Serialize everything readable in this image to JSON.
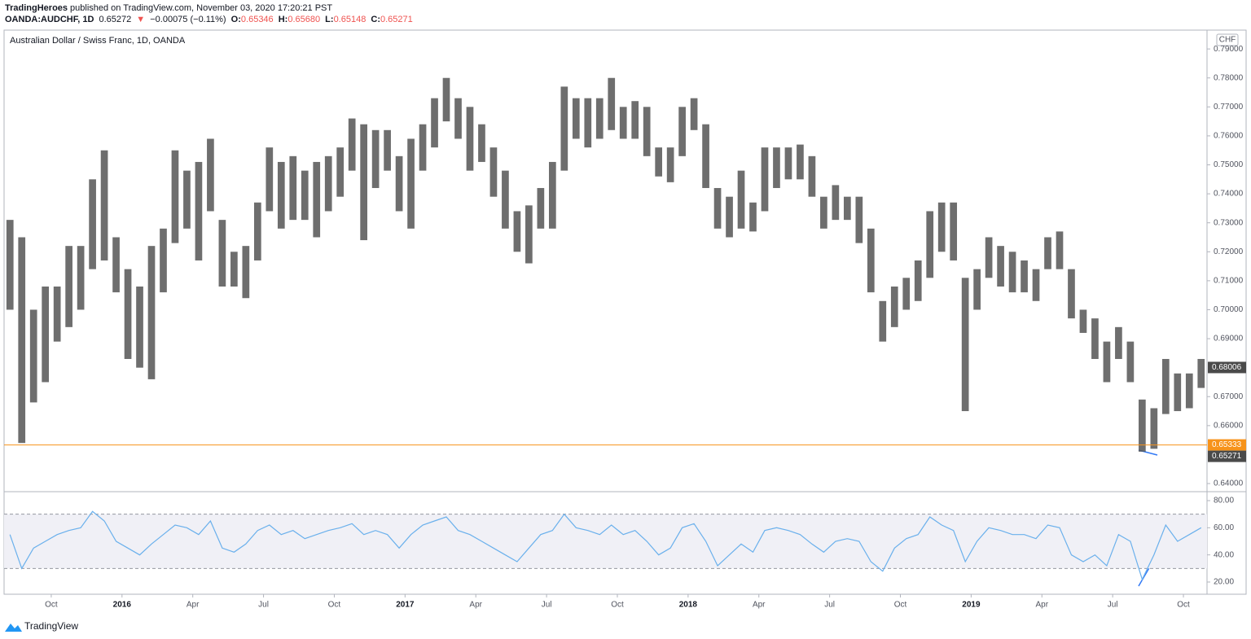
{
  "header": {
    "publisher": "TradingHeroes",
    "published_text": "published on TradingView.com, November 03, 2020 17:20:21 PST",
    "symbol": "OANDA:AUDCHF, 1D",
    "last": "0.65272",
    "change": "−0.00075 (−0.11%)",
    "o_label": "O:",
    "o": "0.65346",
    "h_label": "H:",
    "h": "0.65680",
    "l_label": "L:",
    "l": "0.65148",
    "c_label": "C:",
    "c": "0.65271"
  },
  "chart_data": [
    {
      "type": "range-bar",
      "title": "Australian Dollar / Swiss Franc, 1D, OANDA",
      "currency": "CHF",
      "color": "#555555",
      "categories": [
        null,
        null,
        null,
        null,
        "Oct",
        null,
        null,
        null,
        null,
        null,
        "2016",
        null,
        null,
        null,
        null,
        null,
        "Apr",
        null,
        null,
        null,
        null,
        null,
        "Jul",
        null,
        null,
        null,
        null,
        null,
        "Oct",
        null,
        null,
        null,
        null,
        null,
        "2017",
        null,
        null,
        null,
        null,
        null,
        "Apr",
        null,
        null,
        null,
        null,
        null,
        "Jul",
        null,
        null,
        null,
        null,
        null,
        "Oct",
        null,
        null,
        null,
        null,
        null,
        "2018",
        null,
        null,
        null,
        null,
        null,
        "Apr",
        null,
        null,
        null,
        null,
        null,
        "Jul",
        null,
        null,
        null,
        null,
        null,
        "Oct",
        null,
        null,
        null,
        null,
        null,
        "2019",
        null,
        null,
        null,
        null,
        null,
        "Apr",
        null,
        null,
        null,
        null,
        null,
        "Jul",
        null,
        null,
        null,
        null,
        null,
        "Oct",
        null
      ],
      "high": [
        0.731,
        0.725,
        0.7,
        0.708,
        0.708,
        0.722,
        0.722,
        0.745,
        0.755,
        0.725,
        0.714,
        0.708,
        0.722,
        0.728,
        0.755,
        0.748,
        0.751,
        0.759,
        0.731,
        0.72,
        0.722,
        0.737,
        0.756,
        0.751,
        0.753,
        0.748,
        0.751,
        0.753,
        0.756,
        0.766,
        0.764,
        0.762,
        0.762,
        0.753,
        0.759,
        0.764,
        0.773,
        0.78,
        0.773,
        0.77,
        0.764,
        0.756,
        0.748,
        0.734,
        0.736,
        0.742,
        0.751,
        0.777,
        0.773,
        0.773,
        0.773,
        0.78,
        0.77,
        0.772,
        0.77,
        0.756,
        0.756,
        0.77,
        0.773,
        0.764,
        0.742,
        0.739,
        0.748,
        0.737,
        0.756,
        0.756,
        0.756,
        0.757,
        0.753,
        0.739,
        0.743,
        0.739,
        0.739,
        0.728,
        0.703,
        0.708,
        0.711,
        0.717,
        0.734,
        0.737,
        0.737,
        0.711,
        0.714,
        0.725,
        0.722,
        0.72,
        0.717,
        0.714,
        0.725,
        0.727,
        0.714,
        0.7,
        0.697,
        0.689,
        0.694,
        0.689,
        0.669,
        0.666,
        0.683,
        0.678,
        0.678,
        0.683
      ],
      "low": [
        0.7,
        0.654,
        0.668,
        0.675,
        0.689,
        0.694,
        0.7,
        0.714,
        0.717,
        0.706,
        0.683,
        0.68,
        0.676,
        0.706,
        0.723,
        0.728,
        0.717,
        0.734,
        0.708,
        0.708,
        0.704,
        0.717,
        0.734,
        0.728,
        0.731,
        0.731,
        0.725,
        0.734,
        0.739,
        0.748,
        0.724,
        0.742,
        0.748,
        0.734,
        0.728,
        0.748,
        0.756,
        0.765,
        0.759,
        0.748,
        0.751,
        0.739,
        0.728,
        0.72,
        0.716,
        0.728,
        0.728,
        0.748,
        0.759,
        0.756,
        0.759,
        0.762,
        0.759,
        0.759,
        0.753,
        0.746,
        0.744,
        0.753,
        0.762,
        0.742,
        0.728,
        0.725,
        0.728,
        0.727,
        0.734,
        0.742,
        0.745,
        0.745,
        0.739,
        0.728,
        0.731,
        0.731,
        0.723,
        0.706,
        0.689,
        0.694,
        0.7,
        0.703,
        0.711,
        0.72,
        0.717,
        0.665,
        0.7,
        0.711,
        0.708,
        0.706,
        0.706,
        0.703,
        0.714,
        0.714,
        0.697,
        0.692,
        0.683,
        0.675,
        0.683,
        0.675,
        0.651,
        0.652,
        0.664,
        0.665,
        0.666,
        0.673
      ],
      "ylim": [
        0.6372,
        0.7965
      ],
      "yticks": [
        {
          "value": 0.79,
          "label": "0.79000"
        },
        {
          "value": 0.78,
          "label": "0.78000"
        },
        {
          "value": 0.77,
          "label": "0.77000"
        },
        {
          "value": 0.76,
          "label": "0.76000"
        },
        {
          "value": 0.75,
          "label": "0.75000"
        },
        {
          "value": 0.74,
          "label": "0.74000"
        },
        {
          "value": 0.73,
          "label": "0.73000"
        },
        {
          "value": 0.72,
          "label": "0.72000"
        },
        {
          "value": 0.71,
          "label": "0.71000"
        },
        {
          "value": 0.7,
          "label": "0.70000"
        },
        {
          "value": 0.69,
          "label": "0.69000"
        },
        {
          "value": 0.67,
          "label": "0.67000"
        },
        {
          "value": 0.66,
          "label": "0.66000"
        },
        {
          "value": 0.64,
          "label": "0.64000"
        }
      ],
      "hline": {
        "value": 0.65333,
        "color": "#f7931a"
      },
      "price_tags": [
        {
          "value": 0.68006,
          "label": "0.68006",
          "color": "#4a4a4a"
        },
        {
          "value": 0.65333,
          "label": "0.65333",
          "color": "#f7931a"
        },
        {
          "value": 0.65271,
          "label": "0.65271",
          "color": "#4a4a4a"
        }
      ]
    },
    {
      "type": "line",
      "color": "#6ab0ec",
      "values": [
        55,
        30,
        45,
        50,
        55,
        58,
        60,
        72,
        65,
        50,
        45,
        40,
        48,
        55,
        62,
        60,
        55,
        65,
        45,
        42,
        48,
        58,
        62,
        55,
        58,
        52,
        55,
        58,
        60,
        63,
        55,
        58,
        55,
        45,
        55,
        62,
        65,
        68,
        58,
        55,
        50,
        45,
        40,
        35,
        45,
        55,
        58,
        70,
        60,
        58,
        55,
        62,
        55,
        58,
        50,
        40,
        45,
        60,
        63,
        50,
        32,
        40,
        48,
        42,
        58,
        60,
        58,
        55,
        48,
        42,
        50,
        52,
        50,
        35,
        28,
        45,
        52,
        55,
        68,
        62,
        58,
        35,
        50,
        60,
        58,
        55,
        55,
        52,
        62,
        60,
        40,
        35,
        40,
        32,
        55,
        50,
        22,
        40,
        62,
        50,
        55,
        60
      ],
      "ylim": [
        11,
        86.6
      ],
      "yticks": [
        {
          "value": 80,
          "label": "80.00"
        },
        {
          "value": 60,
          "label": "60.00"
        },
        {
          "value": 40,
          "label": "40.00"
        },
        {
          "value": 20,
          "label": "20.00"
        }
      ],
      "bands": [
        70,
        30
      ]
    }
  ],
  "footer": {
    "brand": "TradingView"
  }
}
